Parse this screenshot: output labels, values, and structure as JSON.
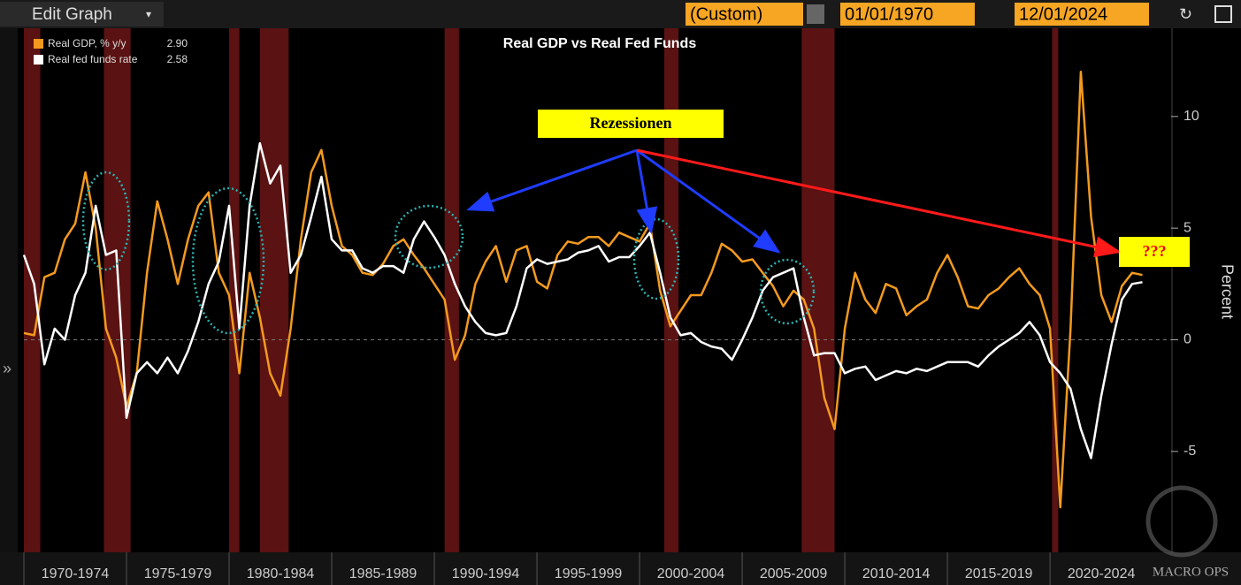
{
  "ui": {
    "edit": "Edit Graph",
    "preset": "(Custom)",
    "start": "01/01/1970",
    "end": "12/01/2024",
    "watermark": "MACRO OPS"
  },
  "chart_data": {
    "type": "line",
    "title": "Real GDP vs Real Fed Funds",
    "y_label": "Percent",
    "annotations": [
      "Rezessionen",
      "???"
    ],
    "x": [
      1970,
      1970.5,
      1971,
      1971.5,
      1972,
      1972.5,
      1973,
      1973.5,
      1974,
      1974.5,
      1975,
      1975.5,
      1976,
      1976.5,
      1977,
      1977.5,
      1978,
      1978.5,
      1979,
      1979.5,
      1980,
      1980.5,
      1981,
      1981.5,
      1982,
      1982.5,
      1983,
      1983.5,
      1984,
      1984.5,
      1985,
      1985.5,
      1986,
      1986.5,
      1987,
      1987.5,
      1988,
      1988.5,
      1989,
      1989.5,
      1990,
      1990.5,
      1991,
      1991.5,
      1992,
      1992.5,
      1993,
      1993.5,
      1994,
      1994.5,
      1995,
      1995.5,
      1996,
      1996.5,
      1997,
      1997.5,
      1998,
      1998.5,
      1999,
      1999.5,
      2000,
      2000.5,
      2001,
      2001.5,
      2002,
      2002.5,
      2003,
      2003.5,
      2004,
      2004.5,
      2005,
      2005.5,
      2006,
      2006.5,
      2007,
      2007.5,
      2008,
      2008.5,
      2009,
      2009.5,
      2010,
      2010.5,
      2011,
      2011.5,
      2012,
      2012.5,
      2013,
      2013.5,
      2014,
      2014.5,
      2015,
      2015.5,
      2016,
      2016.5,
      2017,
      2017.5,
      2018,
      2018.5,
      2019,
      2019.5,
      2020,
      2020.5,
      2021,
      2021.5,
      2022,
      2022.5,
      2023,
      2023.5,
      2024,
      2024.5
    ],
    "series": [
      {
        "name": "Real GDP, % y/y",
        "legend_value": "2.90",
        "color": "#f39a1e",
        "values": [
          0.3,
          0.2,
          2.8,
          3.0,
          4.5,
          5.2,
          7.5,
          5.0,
          0.5,
          -0.8,
          -3.0,
          -1.5,
          3.0,
          6.2,
          4.5,
          2.5,
          4.5,
          6.0,
          6.6,
          3.0,
          2.0,
          -1.5,
          3.0,
          1.0,
          -1.5,
          -2.5,
          0.5,
          4.5,
          7.5,
          8.5,
          6.0,
          4.2,
          3.8,
          3.0,
          2.9,
          3.4,
          4.2,
          4.5,
          3.8,
          3.2,
          2.5,
          1.8,
          -0.9,
          0.2,
          2.5,
          3.5,
          4.2,
          2.6,
          4.0,
          4.2,
          2.6,
          2.3,
          3.8,
          4.4,
          4.3,
          4.6,
          4.6,
          4.2,
          4.8,
          4.6,
          4.4,
          5.2,
          2.2,
          0.6,
          1.3,
          2.0,
          2.0,
          3.0,
          4.3,
          4.0,
          3.5,
          3.6,
          3.0,
          2.4,
          1.5,
          2.2,
          1.8,
          0.5,
          -2.6,
          -4.0,
          0.5,
          3.0,
          1.8,
          1.2,
          2.5,
          2.3,
          1.1,
          1.5,
          1.8,
          3.0,
          3.8,
          2.8,
          1.5,
          1.4,
          2.0,
          2.3,
          2.8,
          3.2,
          2.5,
          2.0,
          0.5,
          -7.5,
          0.5,
          12.0,
          5.5,
          2.0,
          0.8,
          2.4,
          3.0,
          2.9
        ]
      },
      {
        "name": "Real fed funds rate",
        "legend_value": "2.58",
        "color": "#ffffff",
        "values": [
          3.8,
          2.5,
          -1.1,
          0.5,
          0.0,
          2.0,
          3.0,
          6.0,
          3.8,
          4.0,
          -3.5,
          -1.5,
          -1.0,
          -1.5,
          -0.8,
          -1.5,
          -0.5,
          0.8,
          2.5,
          3.5,
          6.0,
          0.5,
          6.0,
          8.8,
          7.0,
          7.8,
          3.0,
          3.8,
          5.5,
          7.3,
          4.5,
          4.0,
          4.0,
          3.2,
          3.0,
          3.3,
          3.3,
          3.0,
          4.5,
          5.3,
          4.6,
          3.8,
          2.5,
          1.5,
          0.8,
          0.3,
          0.2,
          0.3,
          1.5,
          3.2,
          3.6,
          3.4,
          3.5,
          3.6,
          3.9,
          4.0,
          4.2,
          3.5,
          3.7,
          3.7,
          4.2,
          4.8,
          3.0,
          1.0,
          0.2,
          0.3,
          -0.1,
          -0.3,
          -0.4,
          -0.9,
          0.0,
          1.0,
          2.2,
          2.8,
          3.0,
          3.2,
          1.0,
          -0.7,
          -0.6,
          -0.6,
          -1.5,
          -1.3,
          -1.2,
          -1.8,
          -1.6,
          -1.4,
          -1.5,
          -1.3,
          -1.4,
          -1.2,
          -1.0,
          -1.0,
          -1.0,
          -1.2,
          -0.7,
          -0.3,
          0.0,
          0.3,
          0.8,
          0.2,
          -1.0,
          -1.5,
          -2.2,
          -4.0,
          -5.3,
          -2.5,
          -0.2,
          1.8,
          2.5,
          2.58
        ]
      }
    ],
    "recessions": [
      [
        1970.0,
        1970.8
      ],
      [
        1973.9,
        1975.2
      ],
      [
        1980.0,
        1980.5
      ],
      [
        1981.5,
        1982.9
      ],
      [
        1990.5,
        1991.2
      ],
      [
        2001.2,
        2001.9
      ],
      [
        2007.9,
        2009.5
      ],
      [
        2020.1,
        2020.4
      ]
    ],
    "recession_color": "#5a1212",
    "xlim": [
      1970,
      2025.9
    ],
    "xticks": [
      {
        "value": 1970,
        "label": "1970-1974"
      },
      {
        "value": 1975,
        "label": "1975-1979"
      },
      {
        "value": 1980,
        "label": "1980-1984"
      },
      {
        "value": 1985,
        "label": "1985-1989"
      },
      {
        "value": 1990,
        "label": "1990-1994"
      },
      {
        "value": 1995,
        "label": "1995-1999"
      },
      {
        "value": 2000,
        "label": "2000-2004"
      },
      {
        "value": 2005,
        "label": "2005-2009"
      },
      {
        "value": 2010,
        "label": "2010-2014"
      },
      {
        "value": 2015,
        "label": "2015-2019"
      },
      {
        "value": 2020,
        "label": "2020-2024"
      }
    ],
    "xtick_span": 5,
    "ylim": [
      -9.4,
      14.9
    ],
    "yticks": [
      -5,
      0,
      5,
      10
    ],
    "zero_line": true
  }
}
